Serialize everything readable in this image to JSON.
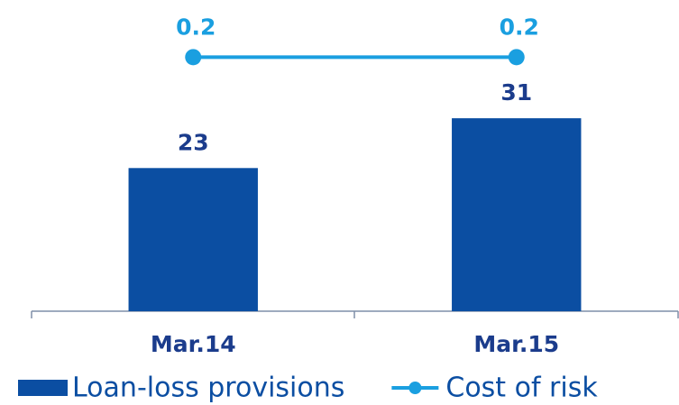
{
  "chart_data": {
    "type": "bar",
    "categories": [
      "Mar.14",
      "Mar.15"
    ],
    "series": [
      {
        "name": "Loan-loss provisions",
        "type": "bar",
        "color": "#0b4ea2",
        "values": [
          23,
          31
        ]
      },
      {
        "name": "Cost of risk",
        "type": "line",
        "axis": "y2",
        "color": "#1a9fe0",
        "values": [
          0.2,
          0.2
        ]
      }
    ],
    "ylim": [
      0,
      50
    ],
    "y2lim": [
      0,
      0.245
    ],
    "legend": "bottom"
  }
}
